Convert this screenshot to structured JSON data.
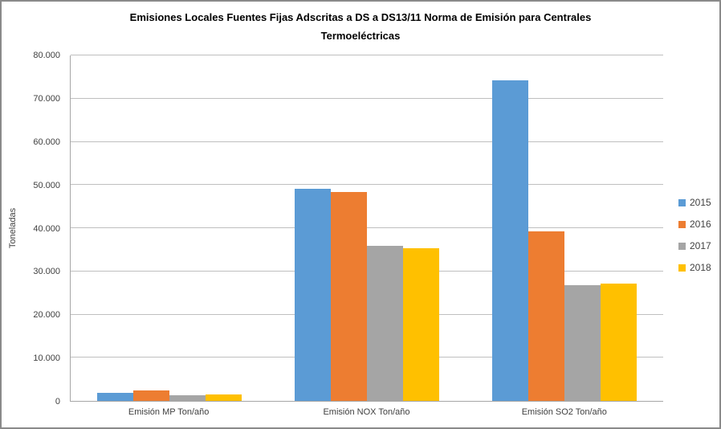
{
  "chart_data": {
    "type": "bar",
    "title": "Emisiones Locales Fuentes Fijas Adscritas a DS a DS13/11 Norma de Emisión para Centrales Termoeléctricas",
    "ylabel": "Toneladas",
    "xlabel": "",
    "ylim": [
      0,
      80000
    ],
    "y_ticks": [
      0,
      10000,
      20000,
      30000,
      40000,
      50000,
      60000,
      70000,
      80000
    ],
    "y_tick_labels": [
      "0",
      "10.000",
      "20.000",
      "30.000",
      "40.000",
      "50.000",
      "60.000",
      "70.000",
      "80.000"
    ],
    "grid": true,
    "legend_position": "right",
    "categories": [
      "Emisión MP Ton/año",
      "Emisión NOX Ton/año",
      "Emisión SO2 Ton/año"
    ],
    "series": [
      {
        "name": "2015",
        "color": "#5B9BD5",
        "values": [
          1800,
          49100,
          74300
        ]
      },
      {
        "name": "2016",
        "color": "#ED7D31",
        "values": [
          2500,
          48400,
          39200
        ]
      },
      {
        "name": "2017",
        "color": "#A5A5A5",
        "values": [
          1300,
          36000,
          26800
        ]
      },
      {
        "name": "2018",
        "color": "#FFC000",
        "values": [
          1500,
          35300,
          27200
        ]
      }
    ]
  },
  "colors": {
    "background": "#FFFFFF",
    "frame_border": "#8A8A8A",
    "gridline": "#BFBFBF",
    "axis_line": "#A6A6A6",
    "label_text": "#404040",
    "title_text": "#000000"
  }
}
